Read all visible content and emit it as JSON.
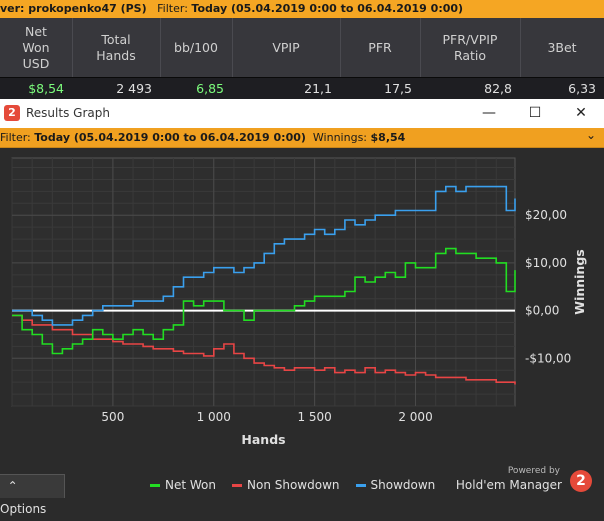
{
  "top_filter": {
    "player": "ver: prokopenko47 (PS)",
    "filter_label": "Filter:",
    "filter_value": "Today (05.04.2019 0:00 to 06.04.2019 0:00)"
  },
  "stats": {
    "headers": [
      "Net\nWon\nUSD",
      "Total\nHands",
      "bb/100",
      "VPIP",
      "PFR",
      "PFR/VPIP\nRatio",
      "3Bet"
    ],
    "values": [
      "$8,54",
      "2 493",
      "6,85",
      "21,1",
      "17,5",
      "82,8",
      "6,33"
    ]
  },
  "window": {
    "title": "Results Graph",
    "minimize": "—",
    "maximize": "☐",
    "close": "✕"
  },
  "graph_filter": {
    "filter_label": "Filter:",
    "filter_value": "Today (05.04.2019 0:00 to 06.04.2019 0:00)",
    "winnings_label": "Winnings:",
    "winnings_value": "$8,54",
    "chevron": "⌄"
  },
  "options_label": "⌃ Options",
  "powered_by": "Powered by",
  "brand": "Hold'em Manager",
  "brand_logo": "2",
  "colors": {
    "net_won": "#22dd22",
    "non_showdown": "#e84545",
    "showdown": "#3aa0ee",
    "accent": "#f5a623"
  },
  "chart_data": {
    "type": "line",
    "xlabel": "Hands",
    "ylabel": "Winnings",
    "xlim": [
      0,
      2493
    ],
    "ylim": [
      -20,
      32
    ],
    "x_ticks": [
      500,
      1000,
      1500,
      2000
    ],
    "x_tick_labels": [
      "500",
      "1 000",
      "1 500",
      "2 000"
    ],
    "y_ticks": [
      -10,
      0,
      10,
      20
    ],
    "y_tick_labels": [
      "-$10,00",
      "$0,00",
      "$10,00",
      "$20,00"
    ],
    "legend": [
      "Net Won",
      "Non Showdown",
      "Showdown"
    ],
    "series": [
      {
        "name": "Net Won",
        "x": [
          0,
          50,
          100,
          150,
          200,
          250,
          300,
          350,
          400,
          450,
          500,
          550,
          600,
          650,
          700,
          750,
          800,
          850,
          900,
          950,
          1000,
          1050,
          1100,
          1150,
          1200,
          1250,
          1300,
          1350,
          1400,
          1450,
          1500,
          1550,
          1600,
          1650,
          1700,
          1750,
          1800,
          1850,
          1900,
          1950,
          2000,
          2050,
          2100,
          2150,
          2200,
          2250,
          2300,
          2350,
          2400,
          2450,
          2493
        ],
        "values": [
          -1,
          -4,
          -5,
          -7,
          -9,
          -8,
          -7,
          -6,
          -4,
          -5,
          -6,
          -5,
          -4,
          -5,
          -6,
          -4,
          -3,
          2,
          1,
          2,
          2,
          0,
          0,
          -2,
          0,
          0,
          0,
          0,
          1,
          2,
          3,
          3,
          3,
          4,
          7,
          6,
          7,
          8,
          7,
          10,
          9,
          9,
          12,
          13,
          12,
          12,
          11,
          11,
          10,
          4,
          8.5
        ]
      },
      {
        "name": "Non Showdown",
        "x": [
          0,
          50,
          100,
          150,
          200,
          250,
          300,
          350,
          400,
          450,
          500,
          550,
          600,
          650,
          700,
          750,
          800,
          850,
          900,
          950,
          1000,
          1050,
          1100,
          1150,
          1200,
          1250,
          1300,
          1350,
          1400,
          1450,
          1500,
          1550,
          1600,
          1650,
          1700,
          1750,
          1800,
          1850,
          1900,
          1950,
          2000,
          2050,
          2100,
          2150,
          2200,
          2250,
          2300,
          2350,
          2400,
          2450,
          2493
        ],
        "values": [
          -1,
          -2,
          -3,
          -3,
          -4,
          -4,
          -5,
          -5,
          -6,
          -6,
          -6.5,
          -7,
          -7,
          -7.5,
          -8,
          -8,
          -8.5,
          -9,
          -9,
          -9.5,
          -8,
          -7,
          -9,
          -10,
          -11,
          -11.5,
          -12,
          -12.5,
          -12,
          -12,
          -12.5,
          -12,
          -13,
          -12.5,
          -13,
          -12,
          -13,
          -12.5,
          -13,
          -13.5,
          -13,
          -13.5,
          -14,
          -14,
          -14,
          -14.5,
          -14.5,
          -14.5,
          -15,
          -15,
          -15.5
        ]
      },
      {
        "name": "Showdown",
        "x": [
          0,
          50,
          100,
          150,
          200,
          250,
          300,
          350,
          400,
          450,
          500,
          550,
          600,
          650,
          700,
          750,
          800,
          850,
          900,
          950,
          1000,
          1050,
          1100,
          1150,
          1200,
          1250,
          1300,
          1350,
          1400,
          1450,
          1500,
          1550,
          1600,
          1650,
          1700,
          1750,
          1800,
          1850,
          1900,
          1950,
          2000,
          2050,
          2100,
          2150,
          2200,
          2250,
          2300,
          2350,
          2400,
          2450,
          2493
        ],
        "values": [
          0,
          0,
          -1,
          -2,
          -3,
          -3,
          -2,
          -1,
          0,
          1,
          1,
          1,
          2,
          2,
          2,
          3,
          5,
          7,
          7,
          8,
          9,
          9,
          8,
          9,
          10,
          12,
          14,
          15,
          15,
          16,
          17,
          16,
          17,
          19,
          18,
          19,
          20,
          20,
          21,
          21,
          21,
          21,
          25,
          26,
          25,
          26,
          26,
          26,
          26,
          21,
          23.5
        ]
      }
    ]
  }
}
